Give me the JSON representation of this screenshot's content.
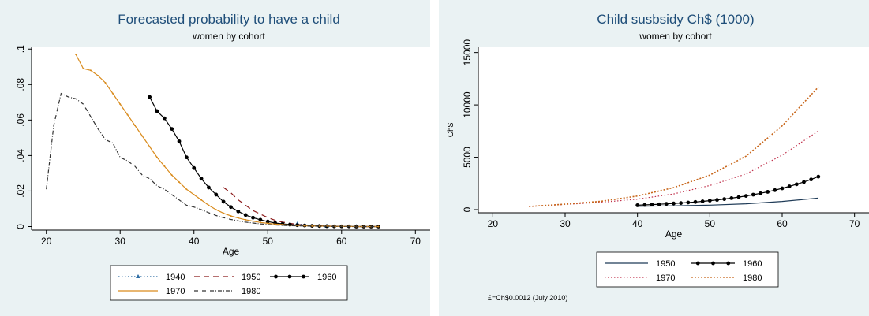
{
  "colors": {
    "background": "#eaf2f3",
    "plot_area": "#ffffff",
    "title": "#1f4e79"
  },
  "chart_data": [
    {
      "type": "line",
      "title": "Forecasted probability to have a child",
      "subtitle": "women by cohort",
      "xlabel": "Age",
      "ylabel": "",
      "xlim": [
        18,
        72
      ],
      "ylim": [
        -0.002,
        0.101
      ],
      "x_ticks": [
        20,
        30,
        40,
        50,
        60,
        70
      ],
      "y_ticks": [
        0,
        0.02,
        0.04,
        0.06,
        0.08,
        0.1
      ],
      "y_tick_labels": [
        "0",
        ".02",
        ".04",
        ".06",
        ".08",
        ".1"
      ],
      "grid": false,
      "legend_position": "bottom",
      "series": [
        {
          "name": "1940",
          "color": "#2e6da4",
          "style": "dotted",
          "x": [
            54,
            55,
            56,
            57,
            58,
            59,
            60,
            61,
            62,
            63,
            64,
            65
          ],
          "y": [
            0.0015,
            0.001,
            0.0006,
            0.0004,
            0.0003,
            0.0002,
            0.0001,
            0.0001,
            0.0001,
            0,
            0,
            0
          ]
        },
        {
          "name": "1950",
          "color": "#8b1a1a",
          "style": "dashed",
          "x": [
            44,
            45,
            46,
            47,
            48,
            49,
            50,
            51,
            52,
            53,
            54,
            55,
            56,
            57,
            58,
            59,
            60,
            61,
            62,
            63,
            64,
            65
          ],
          "y": [
            0.022,
            0.019,
            0.015,
            0.012,
            0.009,
            0.007,
            0.005,
            0.0035,
            0.0025,
            0.0018,
            0.0012,
            0.0008,
            0.0006,
            0.0004,
            0.0003,
            0.0002,
            0.0001,
            0.0001,
            0,
            0,
            0,
            0
          ]
        },
        {
          "name": "1960",
          "color": "#000000",
          "style": "solid-dots",
          "x": [
            34,
            35,
            36,
            37,
            38,
            39,
            40,
            41,
            42,
            43,
            44,
            45,
            46,
            47,
            48,
            49,
            50,
            51,
            52,
            53,
            54,
            55,
            56,
            57,
            58,
            59,
            60,
            61,
            62,
            63,
            64,
            65
          ],
          "y": [
            0.073,
            0.065,
            0.061,
            0.055,
            0.048,
            0.039,
            0.033,
            0.027,
            0.022,
            0.018,
            0.014,
            0.011,
            0.0085,
            0.0065,
            0.005,
            0.0038,
            0.0028,
            0.002,
            0.0015,
            0.0011,
            0.0008,
            0.0006,
            0.0004,
            0.0003,
            0.0002,
            0.0001,
            0.0001,
            0.0001,
            0,
            0,
            0,
            0
          ]
        },
        {
          "name": "1970",
          "color": "#d98b1c",
          "style": "solid-ticks",
          "x": [
            24,
            25,
            26,
            27,
            28,
            29,
            30,
            31,
            32,
            33,
            34,
            35,
            36,
            37,
            38,
            39,
            40,
            41,
            42,
            43,
            44,
            45,
            46,
            47,
            48,
            49,
            50,
            51,
            52,
            53,
            54,
            55,
            56,
            57,
            58,
            59,
            60,
            61,
            62,
            63,
            64,
            65
          ],
          "y": [
            0.097,
            0.089,
            0.088,
            0.085,
            0.081,
            0.075,
            0.069,
            0.063,
            0.057,
            0.051,
            0.045,
            0.039,
            0.034,
            0.029,
            0.025,
            0.021,
            0.018,
            0.015,
            0.012,
            0.0095,
            0.0075,
            0.006,
            0.0048,
            0.0038,
            0.003,
            0.0023,
            0.0018,
            0.0014,
            0.0011,
            0.0008,
            0.0006,
            0.0004,
            0.0003,
            0.0002,
            0.0002,
            0.0001,
            0.0001,
            0.0001,
            0,
            0,
            0,
            0
          ]
        },
        {
          "name": "1980",
          "color": "#333333",
          "style": "dash-dot",
          "x": [
            20,
            21,
            22,
            23,
            24,
            25,
            26,
            27,
            28,
            29,
            30,
            31,
            32,
            33,
            34,
            35,
            36,
            37,
            38,
            39,
            40,
            41,
            42,
            43,
            44,
            45,
            46,
            47,
            48,
            49,
            50,
            51,
            52,
            53,
            54,
            55,
            56,
            57,
            58,
            59,
            60,
            61,
            62,
            63,
            64,
            65
          ],
          "y": [
            0.021,
            0.057,
            0.075,
            0.073,
            0.072,
            0.069,
            0.062,
            0.055,
            0.049,
            0.047,
            0.039,
            0.037,
            0.034,
            0.029,
            0.027,
            0.023,
            0.021,
            0.018,
            0.015,
            0.012,
            0.011,
            0.0095,
            0.0078,
            0.0062,
            0.005,
            0.004,
            0.0032,
            0.0025,
            0.002,
            0.0015,
            0.0012,
            0.0009,
            0.0007,
            0.0005,
            0.0004,
            0.0003,
            0.0002,
            0.0002,
            0.0001,
            0.0001,
            0.0001,
            0,
            0,
            0,
            0,
            0
          ]
        }
      ],
      "legend": {
        "rows": [
          [
            "1940",
            "1950",
            "1960"
          ],
          [
            "1970",
            "1980"
          ]
        ]
      }
    },
    {
      "type": "line",
      "title": "Child susbsidy Ch$ (1000)",
      "subtitle": "women by cohort",
      "xlabel": "Age",
      "ylabel": "Ch$",
      "xlim": [
        18,
        72
      ],
      "ylim": [
        -300,
        15500
      ],
      "x_ticks": [
        20,
        30,
        40,
        50,
        60,
        70
      ],
      "y_ticks": [
        0,
        5000,
        10000,
        15000
      ],
      "grid": false,
      "legend_position": "bottom",
      "note": "£=Ch$0.0012 (July 2010)",
      "series": [
        {
          "name": "1950",
          "color": "#1f3b57",
          "style": "solid",
          "x": [
            40,
            45,
            50,
            55,
            60,
            65
          ],
          "y": [
            320,
            360,
            430,
            560,
            780,
            1100
          ]
        },
        {
          "name": "1960",
          "color": "#000000",
          "style": "solid-dots",
          "x": [
            40,
            41,
            42,
            43,
            44,
            45,
            46,
            47,
            48,
            49,
            50,
            51,
            52,
            53,
            54,
            55,
            56,
            57,
            58,
            59,
            60,
            61,
            62,
            63,
            64,
            65
          ],
          "y": [
            420,
            450,
            480,
            510,
            550,
            590,
            630,
            680,
            730,
            790,
            860,
            930,
            1010,
            1100,
            1200,
            1310,
            1430,
            1560,
            1700,
            1860,
            2030,
            2220,
            2420,
            2640,
            2880,
            3150
          ]
        },
        {
          "name": "1970",
          "color": "#c0304b",
          "style": "dotted",
          "x": [
            25,
            30,
            35,
            40,
            45,
            50,
            55,
            60,
            65
          ],
          "y": [
            300,
            500,
            700,
            1000,
            1500,
            2300,
            3400,
            5200,
            7500
          ]
        },
        {
          "name": "1980",
          "color": "#c8661a",
          "style": "dotted-bold",
          "x": [
            25,
            30,
            35,
            40,
            45,
            50,
            55,
            60,
            65
          ],
          "y": [
            300,
            520,
            800,
            1300,
            2100,
            3300,
            5100,
            8000,
            11700
          ]
        }
      ],
      "legend": {
        "rows": [
          [
            "1950",
            "1960"
          ],
          [
            "1970",
            "1980"
          ]
        ]
      }
    }
  ]
}
